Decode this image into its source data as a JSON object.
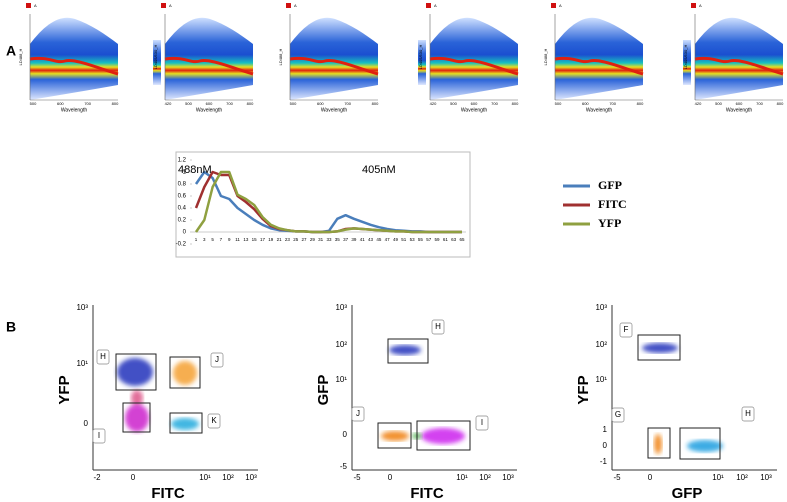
{
  "panel_labels": {
    "a": "A",
    "b": "B"
  },
  "spectra": [
    {
      "legend": "A",
      "ylabel": "LD488_H",
      "xlabel": "Wavelength",
      "xticks": [
        "500",
        "600",
        "700",
        "800"
      ]
    },
    {
      "legend": "A",
      "ylabel": "LD405/530_H",
      "xlabel": "Wavelength",
      "xticks": [
        "420",
        "500",
        "600",
        "700",
        "800"
      ]
    },
    {
      "legend": "A",
      "ylabel": "LD488_H",
      "xlabel": "Wavelength",
      "xticks": [
        "500",
        "600",
        "700",
        "800"
      ]
    },
    {
      "legend": "A",
      "ylabel": "LD405/530_H",
      "xlabel": "Wavelength",
      "xticks": [
        "420",
        "500",
        "600",
        "700",
        "800"
      ]
    },
    {
      "legend": "A",
      "ylabel": "LD488_H",
      "xlabel": "Wavelength",
      "xticks": [
        "500",
        "600",
        "700",
        "800"
      ]
    },
    {
      "legend": "A",
      "ylabel": "LD405/530_H",
      "xlabel": "Wavelength",
      "xticks": [
        "420",
        "500",
        "600",
        "700",
        "800"
      ]
    }
  ],
  "chart_data": {
    "type": "line",
    "annotations": [
      "488nM",
      "405nM"
    ],
    "categories": [
      "1",
      "3",
      "5",
      "7",
      "9",
      "11",
      "13",
      "15",
      "17",
      "19",
      "21",
      "23",
      "25",
      "27",
      "29",
      "31",
      "33",
      "35",
      "37",
      "39",
      "41",
      "43",
      "45",
      "47",
      "49",
      "51",
      "53",
      "55",
      "57",
      "59",
      "61",
      "63",
      "65"
    ],
    "series": [
      {
        "name": "GFP",
        "color": "#4a7ebb",
        "values": [
          0.8,
          1.0,
          0.9,
          0.6,
          0.55,
          0.4,
          0.3,
          0.2,
          0.12,
          0.06,
          0.03,
          0.02,
          0.01,
          0.01,
          0,
          0,
          0.02,
          0.22,
          0.28,
          0.22,
          0.17,
          0.12,
          0.08,
          0.05,
          0.03,
          0.02,
          0.01,
          0.01,
          0,
          0,
          0,
          0,
          0
        ]
      },
      {
        "name": "FITC",
        "color": "#a03030",
        "values": [
          0.4,
          0.75,
          1.0,
          0.95,
          0.95,
          0.6,
          0.5,
          0.38,
          0.22,
          0.1,
          0.05,
          0.03,
          0.01,
          0.01,
          0,
          0,
          0,
          0.01,
          0.05,
          0.06,
          0.05,
          0.04,
          0.03,
          0.02,
          0.01,
          0.01,
          0,
          0,
          0,
          0,
          0,
          0,
          0
        ]
      },
      {
        "name": "YFP",
        "color": "#8fa040",
        "values": [
          0,
          0.2,
          0.75,
          1.0,
          1.0,
          0.62,
          0.55,
          0.45,
          0.25,
          0.12,
          0.06,
          0.03,
          0.01,
          0.01,
          0,
          0,
          0,
          0.01,
          0.04,
          0.06,
          0.05,
          0.04,
          0.03,
          0.02,
          0.01,
          0.01,
          0,
          0,
          0,
          0,
          0,
          0,
          0
        ]
      }
    ],
    "ylim": [
      -0.2,
      1.2
    ],
    "yticks": [
      -0.2,
      0,
      0.2,
      0.4,
      0.6,
      0.8,
      1,
      1.2
    ],
    "grid": false,
    "legend": "right"
  },
  "flow_plots": [
    {
      "xlabel": "FITC",
      "ylabel": "YFP",
      "xticks": [
        "-2",
        "0",
        "10¹",
        "10²",
        "10³"
      ],
      "yticks": [
        "10³",
        "10¹",
        "0"
      ],
      "gates": [
        "H",
        "J",
        "K",
        "I"
      ]
    },
    {
      "xlabel": "FITC",
      "ylabel": "GFP",
      "xticks": [
        "-5",
        "0",
        "10¹",
        "10²",
        "10³"
      ],
      "yticks": [
        "10³",
        "10²",
        "10¹",
        "0",
        "-5"
      ],
      "gates": [
        "H",
        "J",
        "I"
      ]
    },
    {
      "xlabel": "GFP",
      "ylabel": "YFP",
      "xticks": [
        "-5",
        "0",
        "10¹",
        "10²",
        "10³"
      ],
      "yticks": [
        "10³",
        "10²",
        "10¹",
        "1",
        "0",
        "-1"
      ],
      "gates": [
        "F",
        "G",
        "H"
      ]
    }
  ]
}
